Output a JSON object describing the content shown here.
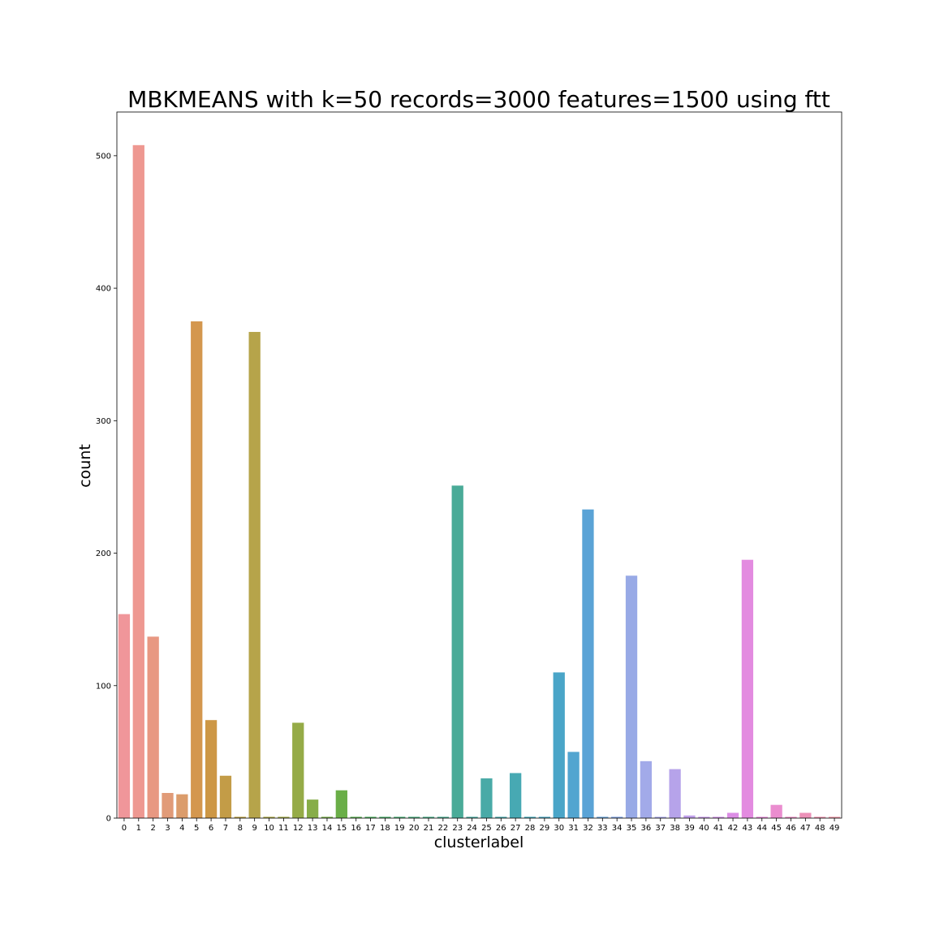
{
  "chart_data": {
    "type": "bar",
    "title": "MBKMEANS with k=50 records=3000 features=1500 using ftt",
    "xlabel": "clusterlabel",
    "ylabel": "count",
    "ylim": [
      0,
      533
    ],
    "yticks": [
      0,
      100,
      200,
      300,
      400,
      500
    ],
    "grid": false,
    "categories": [
      "0",
      "1",
      "2",
      "3",
      "4",
      "5",
      "6",
      "7",
      "8",
      "9",
      "10",
      "11",
      "12",
      "13",
      "14",
      "15",
      "16",
      "17",
      "18",
      "19",
      "20",
      "21",
      "22",
      "23",
      "24",
      "25",
      "26",
      "27",
      "28",
      "29",
      "30",
      "31",
      "32",
      "33",
      "34",
      "35",
      "36",
      "37",
      "38",
      "39",
      "40",
      "41",
      "42",
      "43",
      "44",
      "45",
      "46",
      "47",
      "48",
      "49"
    ],
    "values": [
      154,
      508,
      137,
      19,
      18,
      375,
      74,
      32,
      1,
      367,
      1,
      1,
      72,
      14,
      1,
      21,
      1,
      1,
      1,
      1,
      1,
      1,
      1,
      251,
      1,
      30,
      1,
      34,
      1,
      1,
      110,
      50,
      233,
      1,
      1,
      183,
      43,
      1,
      37,
      2,
      1,
      1,
      4,
      195,
      1,
      10,
      1,
      4,
      1,
      1
    ],
    "colors": [
      "#f0969a",
      "#ee9891",
      "#e89882",
      "#e19b78",
      "#db9c6b",
      "#d4974e",
      "#cd9745",
      "#c39c47",
      "#bba147",
      "#b6a44a",
      "#aba647",
      "#a0a847",
      "#95ab47",
      "#87ad48",
      "#79ae48",
      "#6aae48",
      "#59ae51",
      "#4eae5e",
      "#4aae69",
      "#4aad74",
      "#4aad7d",
      "#4aac86",
      "#4aab8f",
      "#4aab98",
      "#4aaba0",
      "#49aaa7",
      "#48a9ad",
      "#47a9b3",
      "#47a8b9",
      "#4aa6c0",
      "#4aa5c8",
      "#52a5d0",
      "#5aa3d6",
      "#6aa3d9",
      "#80a3e3",
      "#98aae6",
      "#a2aae9",
      "#abaaea",
      "#b6a3ea",
      "#c1a0eb",
      "#c99aea",
      "#d193e8",
      "#dc8de5",
      "#e38be0",
      "#e88cda",
      "#ea8dcf",
      "#eb8fc4",
      "#ec91b8",
      "#ed93ae",
      "#ee95a5"
    ]
  }
}
